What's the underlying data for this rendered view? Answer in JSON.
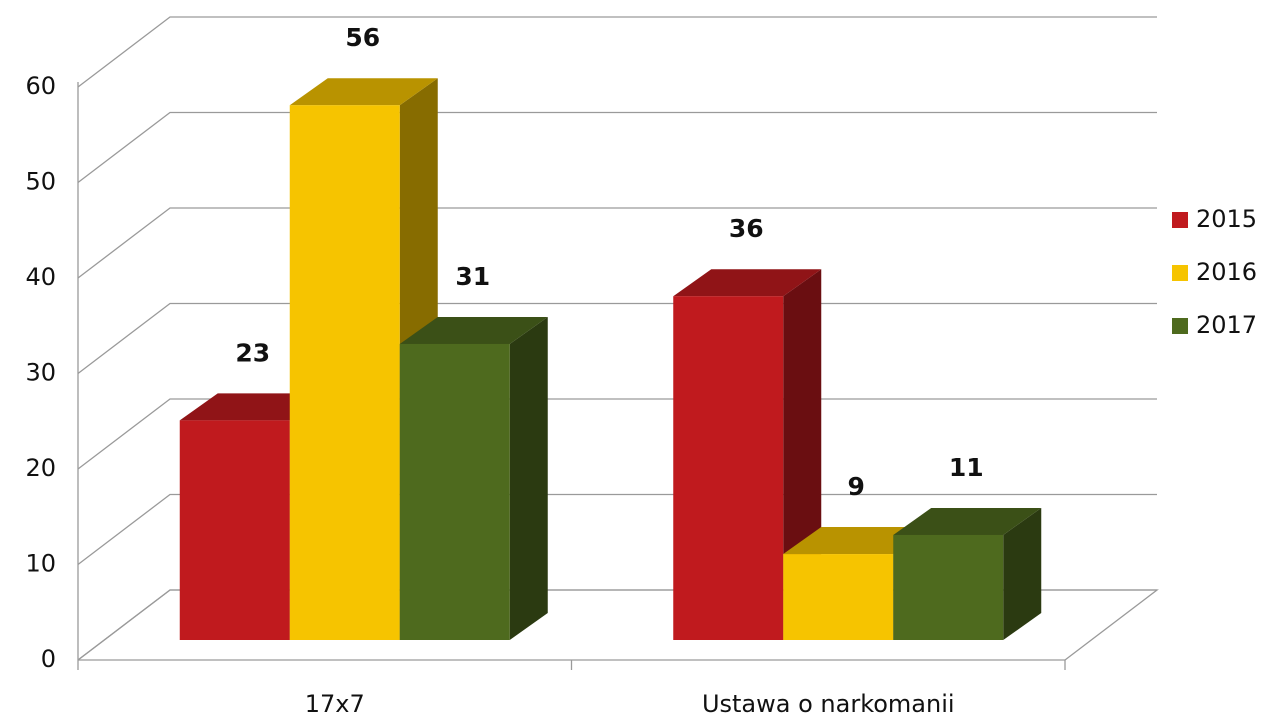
{
  "chart_data": {
    "type": "bar3d",
    "categories": [
      "17x7",
      "Ustawa o narkomanii"
    ],
    "series": [
      {
        "name": "2015",
        "color": "#c01a1e",
        "values": [
          23,
          36
        ]
      },
      {
        "name": "2016",
        "color": "#f6c400",
        "values": [
          56,
          9
        ]
      },
      {
        "name": "2017",
        "color": "#4e6a1e",
        "values": [
          31,
          11
        ]
      }
    ],
    "ylim": [
      0,
      60
    ],
    "yticks": [
      0,
      10,
      20,
      30,
      40,
      50,
      60
    ],
    "grid": true,
    "legend": "right"
  }
}
